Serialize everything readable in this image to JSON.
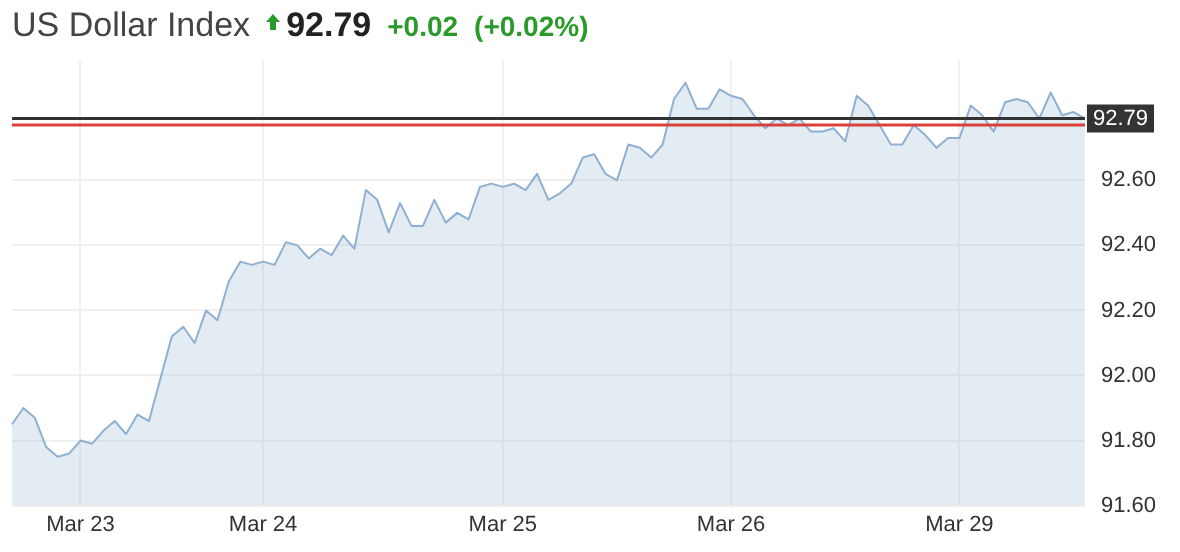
{
  "chart_data": {
    "type": "area",
    "title": "US Dollar Index",
    "annotations": [
      "92.79",
      "+0.02",
      "(+0.02%)"
    ],
    "categories": [
      null,
      null,
      null,
      null,
      null,
      null,
      "Mar 23",
      null,
      null,
      null,
      null,
      null,
      null,
      null,
      null,
      null,
      null,
      null,
      null,
      null,
      null,
      null,
      "Mar 24",
      null,
      null,
      null,
      null,
      null,
      null,
      null,
      null,
      null,
      null,
      null,
      null,
      null,
      null,
      null,
      null,
      null,
      null,
      null,
      null,
      "Mar 25",
      null,
      null,
      null,
      null,
      null,
      null,
      null,
      null,
      null,
      null,
      null,
      null,
      null,
      null,
      null,
      null,
      null,
      null,
      null,
      "Mar 26",
      null,
      null,
      null,
      null,
      null,
      null,
      null,
      null,
      null,
      null,
      null,
      null,
      null,
      null,
      null,
      null,
      null,
      null,
      null,
      "Mar 29",
      null,
      null,
      null,
      null,
      null,
      null,
      null,
      null,
      null,
      null,
      null
    ],
    "series": [
      {
        "color": "#8fb0d0",
        "values": [
          91.85,
          91.9,
          91.87,
          91.78,
          91.75,
          91.76,
          91.8,
          91.79,
          91.83,
          91.86,
          91.82,
          91.88,
          91.86,
          91.99,
          92.12,
          92.15,
          92.1,
          92.2,
          92.17,
          92.29,
          92.35,
          92.34,
          92.35,
          92.34,
          92.41,
          92.4,
          92.36,
          92.39,
          92.37,
          92.43,
          92.39,
          92.57,
          92.54,
          92.44,
          92.53,
          92.46,
          92.46,
          92.54,
          92.47,
          92.5,
          92.48,
          92.58,
          92.59,
          92.58,
          92.59,
          92.57,
          92.62,
          92.54,
          92.56,
          92.59,
          92.67,
          92.68,
          92.62,
          92.6,
          92.71,
          92.7,
          92.67,
          92.71,
          92.85,
          92.9,
          92.82,
          92.82,
          92.88,
          92.86,
          92.85,
          92.8,
          92.76,
          92.79,
          92.77,
          92.79,
          92.75,
          92.75,
          92.76,
          92.72,
          92.86,
          92.83,
          92.77,
          92.71,
          92.71,
          92.77,
          92.74,
          92.7,
          92.73,
          92.73,
          92.83,
          92.8,
          92.75,
          92.84,
          92.85,
          92.84,
          92.79,
          92.87,
          92.8,
          92.81,
          92.79
        ]
      }
    ],
    "ylim": [
      91.6,
      92.97
    ],
    "yticks": [
      {
        "value": 91.6,
        "label": "91.60"
      },
      {
        "value": 91.8,
        "label": "91.80"
      },
      {
        "value": 92,
        "label": "92.00"
      },
      {
        "value": 92.2,
        "label": "92.20"
      },
      {
        "value": 92.4,
        "label": "92.40"
      },
      {
        "value": 92.6,
        "label": "92.60"
      }
    ],
    "ref_lines": [
      {
        "axis": "y",
        "value": 92.79,
        "label": "92.79",
        "color": "#333333"
      },
      {
        "axis": "y",
        "value": 92.77,
        "color": "#d9413a"
      }
    ],
    "grid": true,
    "legend": false,
    "marker": "none",
    "line_style": "solid"
  }
}
